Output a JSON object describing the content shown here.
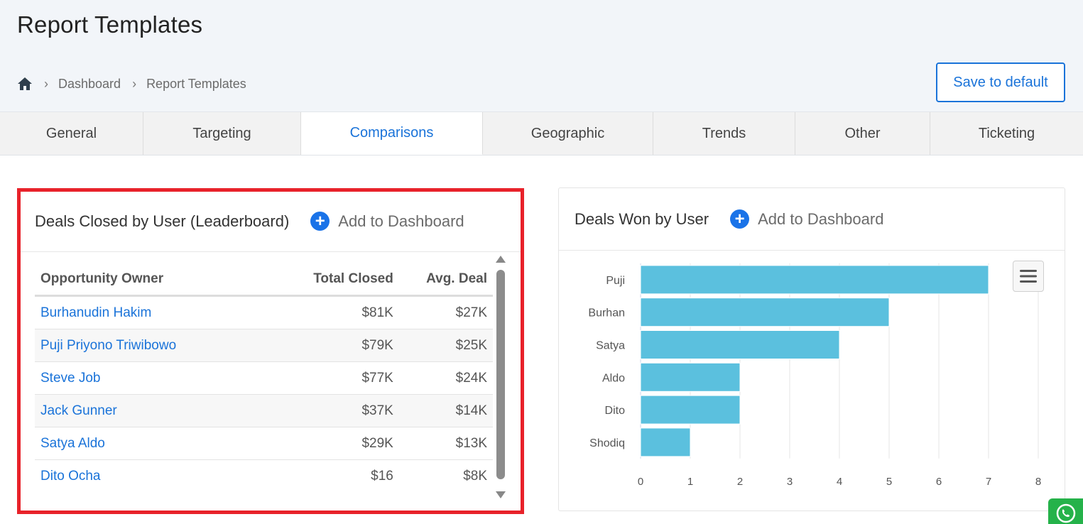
{
  "page": {
    "title": "Report Templates"
  },
  "breadcrumb": {
    "home_icon": "home-icon",
    "items": [
      "Dashboard",
      "Report Templates"
    ]
  },
  "actions": {
    "save_label": "Save to default"
  },
  "tabs": [
    {
      "label": "General"
    },
    {
      "label": "Targeting"
    },
    {
      "label": "Comparisons",
      "active": true
    },
    {
      "label": "Geographic"
    },
    {
      "label": "Trends"
    },
    {
      "label": "Other"
    },
    {
      "label": "Ticketing"
    }
  ],
  "leaderboard": {
    "title": "Deals Closed by User (Leaderboard)",
    "add_label": "Add to Dashboard",
    "columns": [
      "Opportunity Owner",
      "Total Closed",
      "Avg. Deal"
    ],
    "rows": [
      {
        "owner": "Burhanudin Hakim",
        "total": "$81K",
        "avg": "$27K"
      },
      {
        "owner": "Puji Priyono Triwibowo",
        "total": "$79K",
        "avg": "$25K"
      },
      {
        "owner": "Steve Job",
        "total": "$77K",
        "avg": "$24K"
      },
      {
        "owner": "Jack Gunner",
        "total": "$37K",
        "avg": "$14K"
      },
      {
        "owner": "Satya Aldo",
        "total": "$29K",
        "avg": "$13K"
      },
      {
        "owner": "Dito Ocha",
        "total": "$16",
        "avg": "$8K"
      }
    ]
  },
  "deals_won": {
    "title": "Deals Won by User",
    "add_label": "Add to Dashboard",
    "menu_icon": "hamburger-menu-icon"
  },
  "chart_data": {
    "type": "bar",
    "orientation": "horizontal",
    "categories": [
      "Puji",
      "Burhan",
      "Satya",
      "Aldo",
      "Dito",
      "Shodiq"
    ],
    "values": [
      7,
      5,
      4,
      2,
      2,
      1
    ],
    "xlim": [
      0,
      8
    ],
    "xticks": [
      0,
      1,
      2,
      3,
      4,
      5,
      6,
      7,
      8
    ],
    "grid": true,
    "bar_color": "#5bc0de"
  },
  "colors": {
    "accent": "#1a73d9",
    "highlight_frame": "#e8222a",
    "whatsapp": "#25b24a"
  },
  "floating": {
    "whatsapp_icon": "whatsapp-icon"
  }
}
